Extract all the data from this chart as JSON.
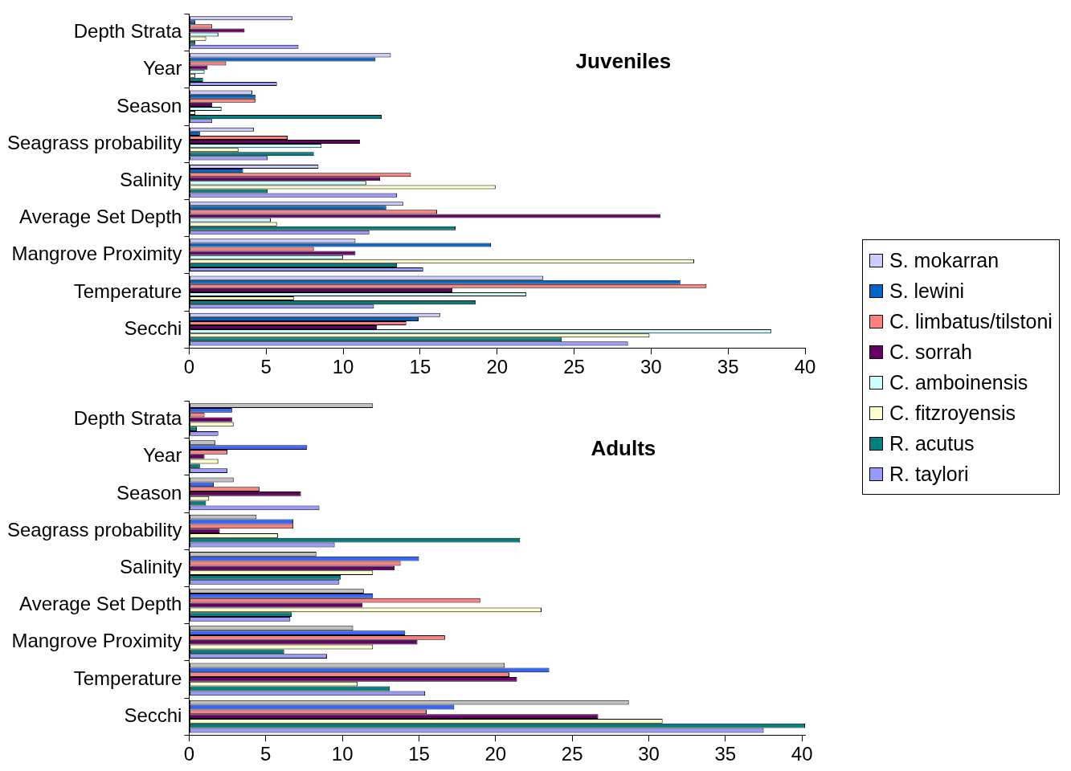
{
  "chart_data": [
    {
      "type": "bar",
      "orientation": "horizontal",
      "title": "Juveniles",
      "categories": [
        "Depth Strata",
        "Year",
        "Season",
        "Seagrass probability",
        "Salinity",
        "Average Set Depth",
        "Mangrove Proximity",
        "Temperature",
        "Secchi"
      ],
      "xlim": [
        0,
        40
      ],
      "xticks": [
        0,
        5,
        10,
        15,
        20,
        25,
        30,
        35,
        40
      ],
      "grid": false,
      "legend": "right",
      "series": [
        {
          "name": "S. mokarran",
          "color": "#ccccff",
          "values": [
            6.7,
            13.1,
            4.1,
            4.2,
            8.4,
            13.9,
            10.8,
            23.0,
            16.3
          ]
        },
        {
          "name": "S. lewini",
          "color": "#0066cc",
          "values": [
            0.4,
            12.1,
            4.3,
            0.7,
            3.5,
            12.8,
            19.6,
            31.9,
            14.9
          ]
        },
        {
          "name": "C. limbatus/tilstoni",
          "color": "#ff8080",
          "values": [
            1.5,
            2.4,
            4.3,
            6.4,
            14.4,
            16.1,
            8.1,
            33.6,
            14.1
          ]
        },
        {
          "name": "C. sorrah",
          "color": "#660066",
          "values": [
            3.6,
            1.2,
            1.5,
            11.1,
            12.4,
            30.6,
            10.8,
            17.1,
            12.2
          ]
        },
        {
          "name": "C. amboinensis",
          "color": "#ccffff",
          "values": [
            1.9,
            1.0,
            2.1,
            8.6,
            11.5,
            5.3,
            10.0,
            21.9,
            37.8
          ]
        },
        {
          "name": "C. fitzroyensis",
          "color": "#ffffcc",
          "values": [
            1.1,
            0.4,
            0.4,
            3.2,
            19.9,
            5.7,
            32.8,
            6.8,
            29.9
          ]
        },
        {
          "name": "R. acutus",
          "color": "#008080",
          "values": [
            0.4,
            0.9,
            12.5,
            8.1,
            5.1,
            17.3,
            13.5,
            18.6,
            24.2
          ]
        },
        {
          "name": "R. taylori",
          "color": "#9999ff",
          "values": [
            7.1,
            5.7,
            1.5,
            5.1,
            13.5,
            11.7,
            15.2,
            12.0,
            28.5
          ]
        }
      ]
    },
    {
      "type": "bar",
      "orientation": "horizontal",
      "title": "Adults",
      "categories": [
        "Depth Strata",
        "Year",
        "Season",
        "Seagrass probability",
        "Salinity",
        "Average Set Depth",
        "Mangrove Proximity",
        "Temperature",
        "Secchi"
      ],
      "xlim": [
        0,
        40.2
      ],
      "xticks": [
        0,
        5,
        10,
        15,
        20,
        25,
        30,
        35,
        40
      ],
      "grid": false,
      "series": [
        {
          "color": "#c0c0c0",
          "values": [
            12.0,
            1.7,
            2.9,
            4.4,
            8.3,
            11.4,
            10.7,
            20.6,
            28.7
          ]
        },
        {
          "color": "#3366ff",
          "values": [
            2.8,
            7.7,
            1.6,
            6.8,
            15.0,
            12.0,
            14.1,
            23.5,
            17.3
          ]
        },
        {
          "color": "#ff8080",
          "values": [
            1.0,
            2.5,
            4.6,
            6.8,
            13.8,
            19.0,
            16.7,
            20.9,
            15.5
          ]
        },
        {
          "color": "#660066",
          "values": [
            2.8,
            1.0,
            7.3,
            2.0,
            13.4,
            11.3,
            14.9,
            21.4,
            26.7
          ]
        },
        {
          "color": "#ffffcc",
          "values": [
            2.9,
            1.9,
            1.3,
            5.8,
            12.0,
            23.0,
            12.0,
            11.0,
            30.9
          ]
        },
        {
          "color": "#008080",
          "values": [
            0.5,
            0.7,
            1.1,
            21.6,
            9.9,
            6.7,
            6.2,
            13.1,
            40.2
          ]
        },
        {
          "color": "#9999ff",
          "values": [
            1.9,
            2.5,
            8.5,
            9.5,
            9.8,
            6.6,
            9.0,
            15.4,
            37.5
          ]
        }
      ]
    }
  ]
}
